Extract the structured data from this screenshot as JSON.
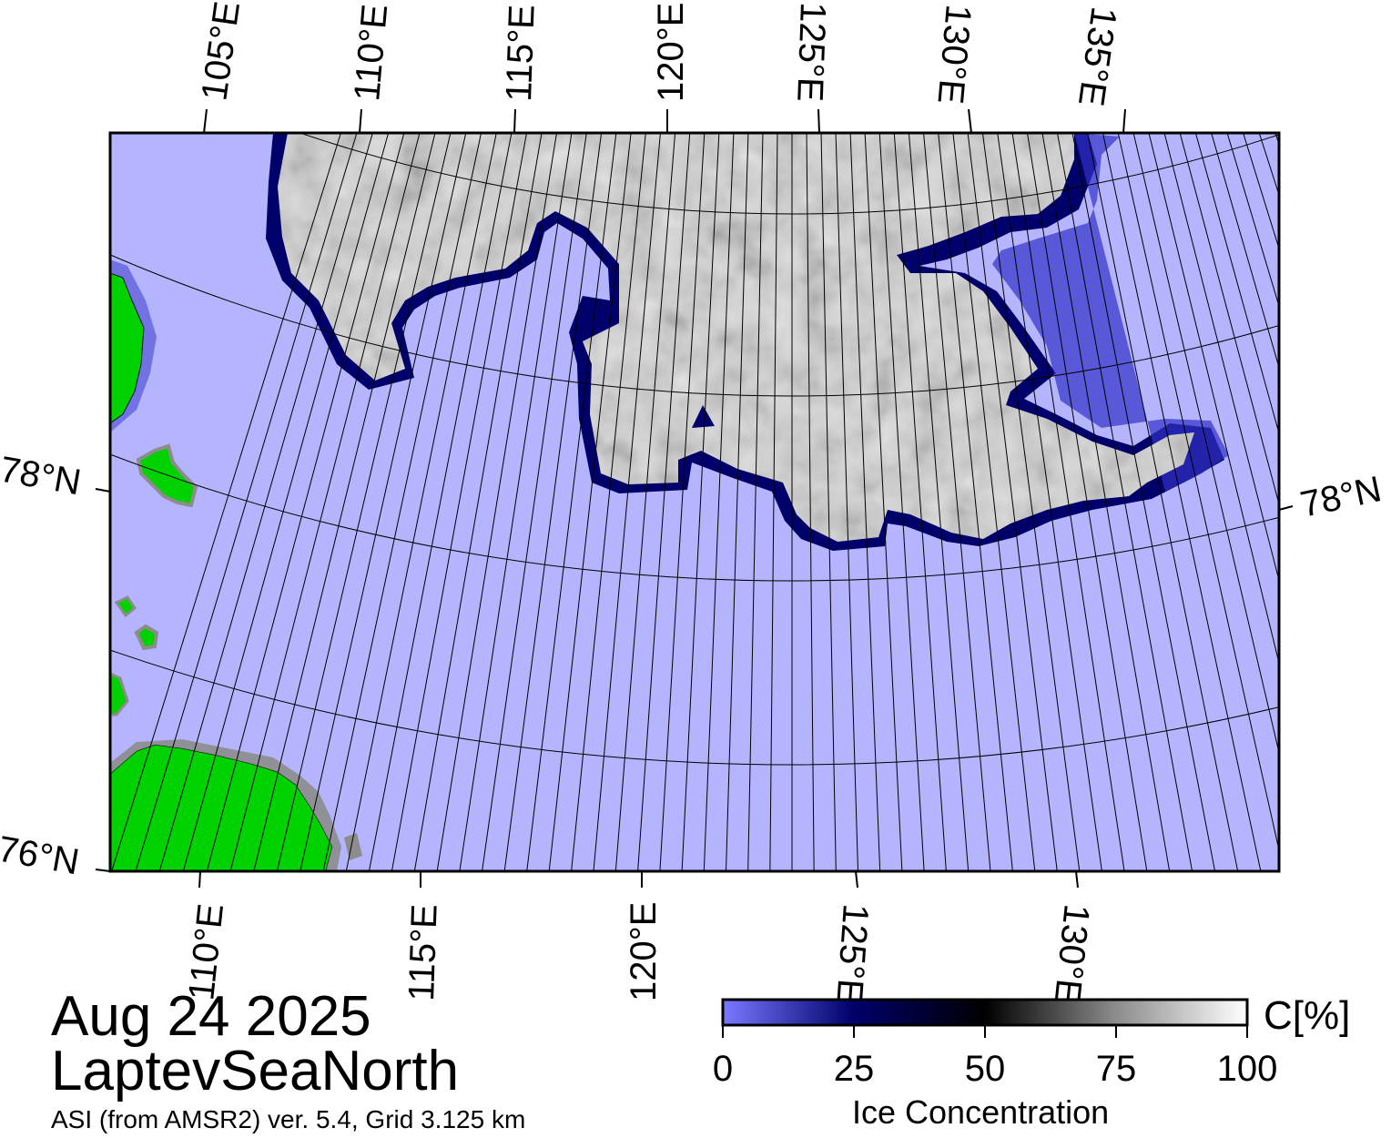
{
  "map": {
    "date": "Aug 24 2025",
    "region": "LaptevSeaNorth",
    "source": "ASI (from AMSR2) ver. 5.4,  Grid 3.125 km"
  },
  "top_lon_labels": [
    "105°E",
    "110°E",
    "115°E",
    "120°E",
    "125°E",
    "130°E",
    "135°E"
  ],
  "bottom_lon_labels": [
    "110°E",
    "115°E",
    "120°E",
    "125°E",
    "130°E"
  ],
  "lat_labels": {
    "left_78": "78°N",
    "right_78": "78°N",
    "left_76": "76°N"
  },
  "colorbar": {
    "title": "Ice Concentration",
    "unit": "C[%]",
    "ticks": [
      "0",
      "25",
      "50",
      "75",
      "100"
    ],
    "colors": {
      "c0": "#7b78ff",
      "c25": "#00006a",
      "c50": "#000000",
      "c75": "#8c8c8c",
      "c100": "#ffffff"
    }
  },
  "colors": {
    "water": "#b4b4ff",
    "land": "#00d200",
    "land_edge": "#8c8c8c",
    "ice_edge": "#00006a"
  }
}
